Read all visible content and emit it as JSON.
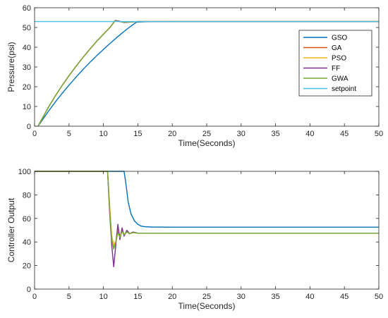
{
  "chart_data": [
    {
      "type": "line",
      "xlabel": "Time(Seconds)",
      "ylabel": "Pressure(psi)",
      "xlim": [
        0,
        50
      ],
      "ylim": [
        0,
        60
      ],
      "xticks": [
        0,
        5,
        10,
        15,
        20,
        25,
        30,
        35,
        40,
        45,
        50
      ],
      "yticks": [
        0,
        10,
        20,
        30,
        40,
        50,
        60
      ],
      "legend_position": "top-right",
      "grid": false,
      "series": [
        {
          "name": "GSO",
          "color": "#0072BD",
          "x": [
            0.5,
            1,
            2,
            3,
            4,
            5,
            6,
            7,
            8,
            9,
            10,
            11,
            12,
            13,
            14,
            14.8,
            16,
            20,
            50
          ],
          "y": [
            0,
            2.5,
            7.5,
            12.2,
            16.6,
            20.8,
            24.8,
            28.6,
            32.2,
            35.6,
            38.9,
            42.1,
            45.1,
            48.0,
            50.7,
            52.7,
            52.9,
            53,
            53
          ]
        },
        {
          "name": "GA",
          "color": "#D95319",
          "x": [
            0.5,
            1,
            2,
            3,
            4,
            5,
            6,
            7,
            8,
            9,
            10,
            11,
            11.7,
            12.3,
            13,
            14,
            15,
            20,
            50
          ],
          "y": [
            0,
            3.2,
            9.5,
            15.3,
            20.6,
            25.6,
            30.3,
            34.7,
            38.9,
            42.9,
            46.6,
            50.2,
            53.4,
            53.0,
            52.6,
            52.8,
            53,
            53,
            53
          ]
        },
        {
          "name": "PSO",
          "color": "#EDB120",
          "x": [
            0.5,
            1,
            2,
            3,
            4,
            5,
            6,
            7,
            8,
            9,
            10,
            11,
            11.7,
            12.3,
            13,
            14,
            15,
            20,
            50
          ],
          "y": [
            0,
            3.2,
            9.5,
            15.3,
            20.6,
            25.6,
            30.3,
            34.7,
            38.9,
            42.9,
            46.6,
            50.2,
            53.5,
            53.1,
            52.6,
            52.8,
            53,
            53,
            53
          ]
        },
        {
          "name": "FF",
          "color": "#7E2F8E",
          "x": [
            0.5,
            1,
            2,
            3,
            4,
            5,
            6,
            7,
            8,
            9,
            10,
            11,
            11.7,
            12.3,
            13,
            14,
            15,
            20,
            50
          ],
          "y": [
            0,
            3.2,
            9.5,
            15.3,
            20.6,
            25.6,
            30.3,
            34.7,
            38.9,
            42.9,
            46.6,
            50.2,
            53.6,
            53.2,
            52.5,
            52.8,
            53,
            53,
            53
          ]
        },
        {
          "name": "GWA",
          "color": "#77AC30",
          "x": [
            0.5,
            1,
            2,
            3,
            4,
            5,
            6,
            7,
            8,
            9,
            10,
            11,
            11.7,
            12.3,
            13,
            14,
            15,
            20,
            50
          ],
          "y": [
            0,
            3.2,
            9.5,
            15.3,
            20.6,
            25.6,
            30.3,
            34.7,
            38.9,
            42.9,
            46.6,
            50.2,
            53.4,
            53.0,
            52.6,
            52.8,
            53,
            53,
            53
          ]
        },
        {
          "name": "setpoint",
          "color": "#4DBEEE",
          "x": [
            0,
            50
          ],
          "y": [
            53,
            53
          ]
        }
      ]
    },
    {
      "type": "line",
      "xlabel": "Time(Seconds)",
      "ylabel": "Controller Output",
      "xlim": [
        0,
        50
      ],
      "ylim": [
        0,
        100
      ],
      "xticks": [
        0,
        5,
        10,
        15,
        20,
        25,
        30,
        35,
        40,
        45,
        50
      ],
      "yticks": [
        0,
        20,
        40,
        60,
        80,
        100
      ],
      "grid": false,
      "series": [
        {
          "name": "GSO",
          "color": "#0072BD",
          "x": [
            0,
            13.0,
            13.3,
            13.6,
            14.0,
            14.5,
            15.0,
            15.5,
            16.0,
            17,
            20,
            50
          ],
          "y": [
            100,
            100,
            88,
            74,
            64,
            58,
            55,
            53.5,
            53,
            52.7,
            52.6,
            52.6
          ]
        },
        {
          "name": "GA",
          "color": "#D95319",
          "x": [
            0,
            10.6,
            10.9,
            11.2,
            11.5,
            11.8,
            12.1,
            12.4,
            12.7,
            13.0,
            13.4,
            13.8,
            14.3,
            15,
            20,
            50
          ],
          "y": [
            100,
            100,
            70,
            45,
            36,
            40,
            49,
            44,
            50,
            46,
            49,
            47,
            48,
            47.5,
            47.5,
            47.5
          ]
        },
        {
          "name": "PSO",
          "color": "#EDB120",
          "x": [
            0,
            10.6,
            10.9,
            11.2,
            11.5,
            11.8,
            12.1,
            12.4,
            12.7,
            13.0,
            13.4,
            13.8,
            14.3,
            15,
            20,
            50
          ],
          "y": [
            100,
            100,
            72,
            46,
            37,
            41,
            51,
            45,
            50,
            46,
            49,
            47,
            48,
            47.5,
            47.5,
            47.5
          ]
        },
        {
          "name": "FF",
          "color": "#7E2F8E",
          "x": [
            0,
            10.6,
            10.9,
            11.2,
            11.5,
            11.8,
            12.1,
            12.4,
            12.7,
            13.0,
            13.4,
            13.8,
            14.3,
            15,
            20,
            50
          ],
          "y": [
            100,
            100,
            65,
            38,
            19,
            38,
            55,
            42,
            52,
            45,
            50,
            47,
            48.5,
            47.5,
            47.5,
            47.5
          ]
        },
        {
          "name": "GWA",
          "color": "#77AC30",
          "x": [
            0,
            10.6,
            10.9,
            11.2,
            11.5,
            11.8,
            12.1,
            12.4,
            12.7,
            13.0,
            13.4,
            13.8,
            14.3,
            15,
            20,
            50
          ],
          "y": [
            100,
            100,
            68,
            42,
            34,
            40,
            48,
            44,
            49,
            46,
            48.5,
            47,
            48,
            47.5,
            47.5,
            47.5
          ]
        }
      ]
    }
  ]
}
